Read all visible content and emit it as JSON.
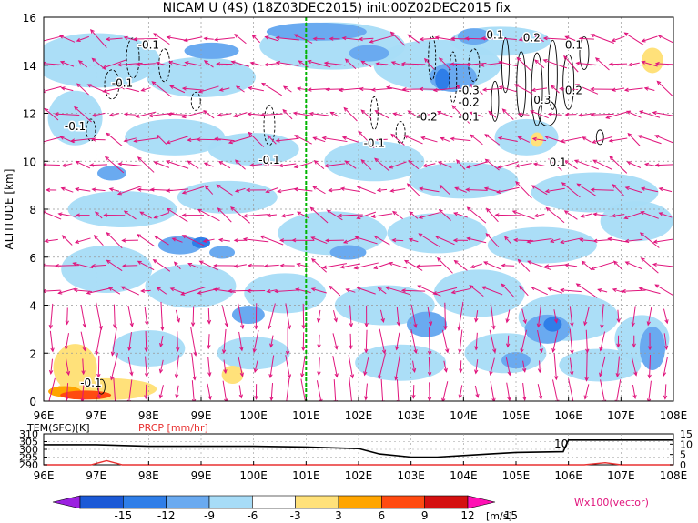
{
  "chart_data": [
    {
      "type": "heatmap",
      "title": "NICAM U (4S) (18Z03DEC2015) init:00Z02DEC2015 fix",
      "xlabel": "",
      "ylabel": "ALTITUDE [km]",
      "xlim": [
        96,
        108
      ],
      "ylim": [
        0,
        16
      ],
      "x_ticks": [
        "96E",
        "97E",
        "98E",
        "99E",
        "100E",
        "101E",
        "102E",
        "103E",
        "104E",
        "105E",
        "106E",
        "107E",
        "108E"
      ],
      "y_ticks": [
        "0",
        "2",
        "4",
        "6",
        "8",
        "10",
        "12",
        "14",
        "16"
      ],
      "reference_line_lon": 101.0,
      "contour_labels": [
        {
          "text": "-0.1",
          "lon": 98.0,
          "alt": 14.7
        },
        {
          "text": "-0.1",
          "lon": 97.5,
          "alt": 13.1
        },
        {
          "text": "-0.1",
          "lon": 96.6,
          "alt": 11.3
        },
        {
          "text": "-0.1",
          "lon": 100.3,
          "alt": 9.9
        },
        {
          "text": "-0.1",
          "lon": 102.3,
          "alt": 10.6
        },
        {
          "text": "-0.2",
          "lon": 103.3,
          "alt": 11.7
        },
        {
          "text": "-0.3",
          "lon": 104.1,
          "alt": 12.8
        },
        {
          "text": "-0.2",
          "lon": 104.1,
          "alt": 12.3
        },
        {
          "text": "-0.1",
          "lon": 104.1,
          "alt": 11.7
        },
        {
          "text": "0.1",
          "lon": 104.6,
          "alt": 15.1
        },
        {
          "text": "0.2",
          "lon": 105.3,
          "alt": 15.0
        },
        {
          "text": "0.1",
          "lon": 106.1,
          "alt": 14.7
        },
        {
          "text": "0.3",
          "lon": 105.5,
          "alt": 12.4
        },
        {
          "text": "0.2",
          "lon": 106.1,
          "alt": 12.8
        },
        {
          "text": "0.1",
          "lon": 105.8,
          "alt": 9.8
        },
        {
          "text": "-0.1",
          "lon": 96.9,
          "alt": 0.6
        }
      ]
    },
    {
      "type": "line",
      "series": [
        {
          "name": "TEM(SFC)[K]",
          "axis_ticks": [
            "290",
            "295",
            "300",
            "305",
            "310"
          ],
          "x": [
            96,
            97,
            98,
            99,
            100,
            101,
            101.5,
            102,
            102.4,
            103,
            103.5,
            104,
            104.5,
            105,
            105.9,
            106,
            107,
            108
          ],
          "values": [
            303,
            303,
            302,
            302,
            302,
            301.5,
            301,
            300.5,
            297,
            295,
            295,
            296,
            297,
            298,
            298.5,
            306,
            306,
            306
          ]
        },
        {
          "name": "PRCP [mm/hr]",
          "axis_ticks": [
            "0",
            "5",
            "10",
            "15"
          ],
          "x": [
            96,
            96.9,
            97.2,
            97.5,
            98,
            100,
            102,
            104,
            106.3,
            106.7,
            107,
            108
          ],
          "values": [
            0,
            0,
            2,
            0,
            0,
            0,
            0,
            0,
            0,
            1,
            0,
            0
          ]
        }
      ],
      "annotation": "10",
      "x_ticks": [
        "96E",
        "97E",
        "98E",
        "99E",
        "100E",
        "101E",
        "102E",
        "103E",
        "104E",
        "105E",
        "106E",
        "107E",
        "108E"
      ]
    }
  ],
  "colorbar": {
    "ticks": [
      "-15",
      "-12",
      "-9",
      "-6",
      "-3",
      "3",
      "6",
      "9",
      "12",
      "15"
    ],
    "unit": "[m/s]",
    "colors": [
      "#9b20e0",
      "#1b59d6",
      "#2f7ee8",
      "#6aaaf0",
      "#a7dcf7",
      "#ffffff",
      "#ffe17a",
      "#ffa500",
      "#ff4a10",
      "#d41010",
      "#ff10b4"
    ]
  },
  "vector_label": "Wx100(vector)",
  "colors": {
    "vector": "#e0147c",
    "ref_line": "#00b400",
    "temp": "#000000",
    "prcp": "#e83030"
  }
}
